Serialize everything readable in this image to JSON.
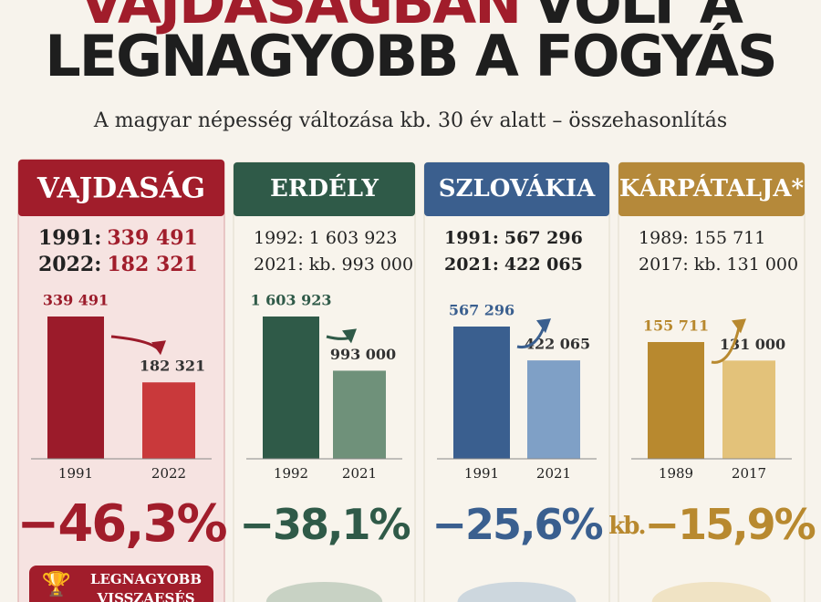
{
  "title_lines": [
    [
      "VAJDASÁGBAN",
      "VOLT A"
    ],
    [
      "LEGNAGYOBB A FOGYÁS"
    ]
  ],
  "subtitle": "A magyar népesség változása kb. 30 év alatt – összehasonlítás",
  "chart_data": [
    {
      "type": "bar",
      "title": "VAJDASÁG",
      "color": "#a11d2b",
      "header": [
        {
          "label": "1991:",
          "value": "339 491"
        },
        {
          "label": "2022:",
          "value": "182 321"
        }
      ],
      "categories": [
        "1991",
        "2022"
      ],
      "values": [
        339491,
        182321
      ],
      "value_labels": [
        "339 491",
        "182 321"
      ],
      "colors": [
        "#9b1b2a",
        "#c9393b"
      ],
      "change": {
        "value": -46.3,
        "label": "−46,3%"
      },
      "badge": [
        "LEGNAGYOBB",
        "VISSZAESÉS"
      ]
    },
    {
      "type": "bar",
      "title": "ERDÉLY",
      "color": "#2f5a48",
      "header": [
        {
          "label": "1992:",
          "value": "1 603 923"
        },
        {
          "label": "2021:",
          "value": "kb. 993 000"
        }
      ],
      "categories": [
        "1992",
        "2021"
      ],
      "values": [
        1603923,
        993000
      ],
      "value_labels": [
        "1 603 923",
        "993 000"
      ],
      "colors": [
        "#2f5a48",
        "#6f917a"
      ],
      "change": {
        "value": -38.1,
        "label": "−38,1%"
      }
    },
    {
      "type": "bar",
      "title": "SZLOVÁKIA",
      "color": "#3b5f8e",
      "header": [
        {
          "label": "1991:",
          "value": "567 296"
        },
        {
          "label": "2021:",
          "value": "422 065"
        }
      ],
      "categories": [
        "1991",
        "2021"
      ],
      "values": [
        567296,
        422065
      ],
      "value_labels": [
        "567 296",
        "422 065"
      ],
      "colors": [
        "#3a5f8f",
        "#7fa0c6"
      ],
      "change": {
        "value": -25.6,
        "label": "−25,6%"
      }
    },
    {
      "type": "bar",
      "title": "KÁRPÁTALJA*",
      "color": "#b5893a",
      "header": [
        {
          "label": "1989:",
          "value": "155 711"
        },
        {
          "label": "2017:",
          "value": "kb. 131 000"
        }
      ],
      "categories": [
        "1989",
        "2017"
      ],
      "values": [
        155711,
        131000
      ],
      "value_labels": [
        "155 711",
        "131 000"
      ],
      "colors": [
        "#b8892f",
        "#e3c27a"
      ],
      "change": {
        "value": -15.9,
        "label": "−15,9%",
        "prefix": "kb."
      }
    }
  ]
}
